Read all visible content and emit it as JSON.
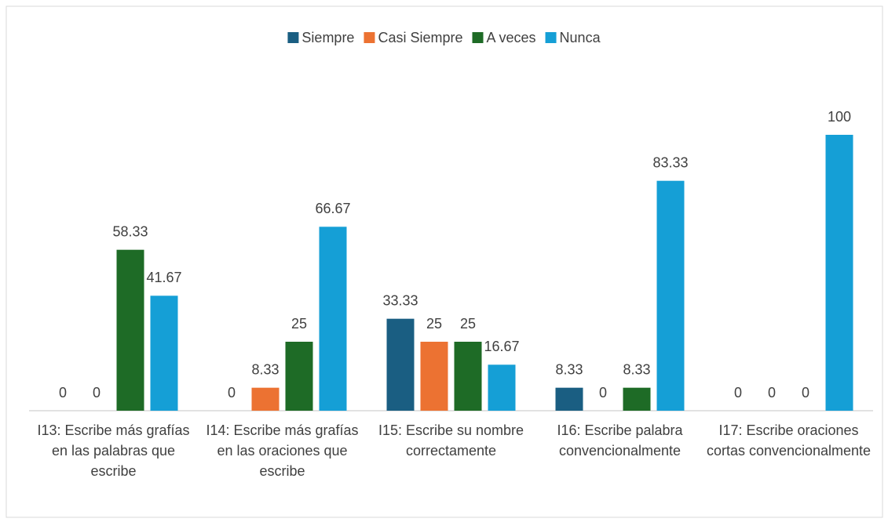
{
  "chart_data": {
    "type": "bar",
    "categories": [
      "I13: Escribe más grafías en las palabras que escribe",
      "I14: Escribe más grafías en las oraciones que escribe",
      "I15: Escribe su nombre correctamente",
      "I16: Escribe palabra convencionalmente",
      "I17: Escribe oraciones cortas convencionalmente"
    ],
    "series": [
      {
        "name": "Siempre",
        "color": "#1a5e82",
        "values": [
          0,
          0,
          33.33,
          8.33,
          0
        ]
      },
      {
        "name": "Casi Siempre",
        "color": "#ec7232",
        "values": [
          0,
          8.33,
          25,
          0,
          0
        ]
      },
      {
        "name": "A veces",
        "color": "#1e6b26",
        "values": [
          58.33,
          25,
          25,
          8.33,
          0
        ]
      },
      {
        "name": "Nunca",
        "color": "#159fd6",
        "values": [
          41.67,
          66.67,
          16.67,
          83.33,
          100
        ]
      }
    ],
    "ylim": [
      0,
      100
    ],
    "legend": "top"
  }
}
